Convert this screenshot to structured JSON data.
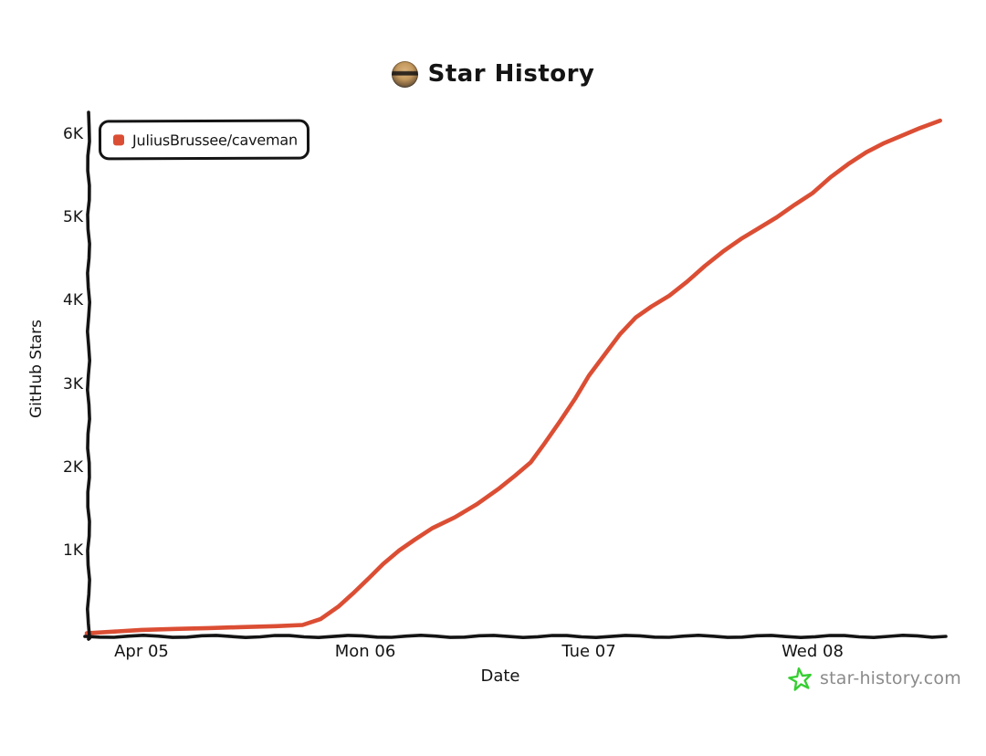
{
  "header": {
    "title": "Star History"
  },
  "legend": {
    "items": [
      {
        "label": "JuliusBrussee/caveman",
        "color": "#DB4E34"
      }
    ]
  },
  "watermark": {
    "text": "star-history.com",
    "text_color": "#8B8B8B",
    "star_color": "#35CE31"
  },
  "chart_data": {
    "type": "line",
    "title": "Star History",
    "xlabel": "Date",
    "ylabel": "GitHub Stars",
    "grid": false,
    "legend_position": "top-left",
    "axis_color": "#141414",
    "x_unit": "days_from_Apr_05",
    "x_range_days": [
      -0.245,
      3.59
    ],
    "y_range": [
      0,
      6250
    ],
    "x_ticks": [
      {
        "t": 0,
        "label": "Apr 05"
      },
      {
        "t": 1,
        "label": "Mon 06"
      },
      {
        "t": 2,
        "label": "Tue 07"
      },
      {
        "t": 3,
        "label": "Wed 08"
      }
    ],
    "y_ticks": [
      {
        "value": 1000,
        "label": "1K"
      },
      {
        "value": 2000,
        "label": "2K"
      },
      {
        "value": 3000,
        "label": "3K"
      },
      {
        "value": 4000,
        "label": "4K"
      },
      {
        "value": 5000,
        "label": "5K"
      },
      {
        "value": 6000,
        "label": "6K"
      }
    ],
    "series": [
      {
        "name": "JuliusBrussee/caveman",
        "color": "#DB4E34",
        "points": [
          [
            -0.245,
            10
          ],
          [
            0,
            50
          ],
          [
            0.15,
            62
          ],
          [
            0.3,
            72
          ],
          [
            0.45,
            84
          ],
          [
            0.6,
            95
          ],
          [
            0.72,
            110
          ],
          [
            0.8,
            180
          ],
          [
            0.88,
            330
          ],
          [
            0.95,
            500
          ],
          [
            1.02,
            680
          ],
          [
            1.08,
            840
          ],
          [
            1.15,
            1000
          ],
          [
            1.22,
            1130
          ],
          [
            1.3,
            1270
          ],
          [
            1.4,
            1400
          ],
          [
            1.5,
            1560
          ],
          [
            1.6,
            1750
          ],
          [
            1.67,
            1900
          ],
          [
            1.74,
            2060
          ],
          [
            1.8,
            2280
          ],
          [
            1.87,
            2550
          ],
          [
            1.94,
            2830
          ],
          [
            2,
            3100
          ],
          [
            2.07,
            3350
          ],
          [
            2.14,
            3600
          ],
          [
            2.21,
            3800
          ],
          [
            2.28,
            3930
          ],
          [
            2.36,
            4060
          ],
          [
            2.44,
            4230
          ],
          [
            2.52,
            4420
          ],
          [
            2.6,
            4590
          ],
          [
            2.68,
            4740
          ],
          [
            2.76,
            4870
          ],
          [
            2.84,
            5000
          ],
          [
            2.92,
            5150
          ],
          [
            3,
            5290
          ],
          [
            3.08,
            5480
          ],
          [
            3.16,
            5640
          ],
          [
            3.24,
            5780
          ],
          [
            3.32,
            5890
          ],
          [
            3.4,
            5980
          ],
          [
            3.48,
            6070
          ],
          [
            3.57,
            6160
          ]
        ]
      }
    ]
  }
}
